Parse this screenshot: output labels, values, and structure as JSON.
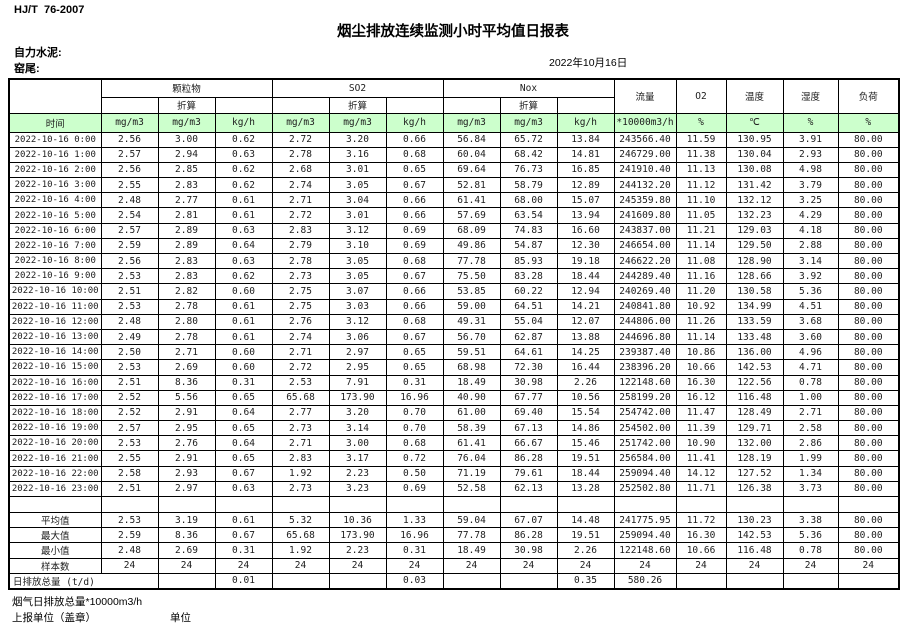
{
  "doc": {
    "standard": "HJ/T  76-2007",
    "title": "烟尘排放连续监测小时平均值日报表",
    "company": "自力水泥:",
    "site": "窑尾:",
    "date": "2022年10月16日"
  },
  "table": {
    "header_fill": "#ccffcc",
    "groups": {
      "pm": "颗粒物",
      "so2": "SO2",
      "nox": "Nox",
      "flow": "流量",
      "o2": "O2",
      "temp": "温度",
      "humidity": "湿度",
      "load": "负荷"
    },
    "converted_label": "折算",
    "units": {
      "time": "时间",
      "mg": "mg/m3",
      "kgh": "kg/h",
      "flow": "*10000m3/h",
      "pct": "%",
      "celsius": "℃"
    },
    "rows": [
      [
        "2022-10-16 0:00",
        "2.56",
        "3.00",
        "0.62",
        "2.72",
        "3.20",
        "0.66",
        "56.84",
        "65.72",
        "13.84",
        "243566.40",
        "11.59",
        "130.95",
        "3.91",
        "80.00"
      ],
      [
        "2022-10-16 1:00",
        "2.57",
        "2.94",
        "0.63",
        "2.78",
        "3.16",
        "0.68",
        "60.04",
        "68.42",
        "14.81",
        "246729.00",
        "11.38",
        "130.04",
        "2.93",
        "80.00"
      ],
      [
        "2022-10-16 2:00",
        "2.56",
        "2.85",
        "0.62",
        "2.68",
        "3.01",
        "0.65",
        "69.64",
        "76.73",
        "16.85",
        "241910.40",
        "11.13",
        "130.08",
        "4.98",
        "80.00"
      ],
      [
        "2022-10-16 3:00",
        "2.55",
        "2.83",
        "0.62",
        "2.74",
        "3.05",
        "0.67",
        "52.81",
        "58.79",
        "12.89",
        "244132.20",
        "11.12",
        "131.42",
        "3.79",
        "80.00"
      ],
      [
        "2022-10-16 4:00",
        "2.48",
        "2.77",
        "0.61",
        "2.71",
        "3.04",
        "0.66",
        "61.41",
        "68.00",
        "15.07",
        "245359.80",
        "11.10",
        "132.12",
        "3.25",
        "80.00"
      ],
      [
        "2022-10-16 5:00",
        "2.54",
        "2.81",
        "0.61",
        "2.72",
        "3.01",
        "0.66",
        "57.69",
        "63.54",
        "13.94",
        "241609.80",
        "11.05",
        "132.23",
        "4.29",
        "80.00"
      ],
      [
        "2022-10-16 6:00",
        "2.57",
        "2.89",
        "0.63",
        "2.83",
        "3.12",
        "0.69",
        "68.09",
        "74.83",
        "16.60",
        "243837.00",
        "11.21",
        "129.03",
        "4.18",
        "80.00"
      ],
      [
        "2022-10-16 7:00",
        "2.59",
        "2.89",
        "0.64",
        "2.79",
        "3.10",
        "0.69",
        "49.86",
        "54.87",
        "12.30",
        "246654.00",
        "11.14",
        "129.50",
        "2.88",
        "80.00"
      ],
      [
        "2022-10-16 8:00",
        "2.56",
        "2.83",
        "0.63",
        "2.78",
        "3.05",
        "0.68",
        "77.78",
        "85.93",
        "19.18",
        "246622.20",
        "11.08",
        "128.90",
        "3.14",
        "80.00"
      ],
      [
        "2022-10-16 9:00",
        "2.53",
        "2.83",
        "0.62",
        "2.73",
        "3.05",
        "0.67",
        "75.50",
        "83.28",
        "18.44",
        "244289.40",
        "11.16",
        "128.66",
        "3.92",
        "80.00"
      ],
      [
        "2022-10-16 10:00",
        "2.51",
        "2.82",
        "0.60",
        "2.75",
        "3.07",
        "0.66",
        "53.85",
        "60.22",
        "12.94",
        "240269.40",
        "11.20",
        "130.58",
        "5.36",
        "80.00"
      ],
      [
        "2022-10-16 11:00",
        "2.53",
        "2.78",
        "0.61",
        "2.75",
        "3.03",
        "0.66",
        "59.00",
        "64.51",
        "14.21",
        "240841.80",
        "10.92",
        "134.99",
        "4.51",
        "80.00"
      ],
      [
        "2022-10-16 12:00",
        "2.48",
        "2.80",
        "0.61",
        "2.76",
        "3.12",
        "0.68",
        "49.31",
        "55.04",
        "12.07",
        "244806.00",
        "11.26",
        "133.59",
        "3.68",
        "80.00"
      ],
      [
        "2022-10-16 13:00",
        "2.49",
        "2.78",
        "0.61",
        "2.74",
        "3.06",
        "0.67",
        "56.70",
        "62.87",
        "13.88",
        "244696.80",
        "11.14",
        "133.48",
        "3.60",
        "80.00"
      ],
      [
        "2022-10-16 14:00",
        "2.50",
        "2.71",
        "0.60",
        "2.71",
        "2.97",
        "0.65",
        "59.51",
        "64.61",
        "14.25",
        "239387.40",
        "10.86",
        "136.00",
        "4.96",
        "80.00"
      ],
      [
        "2022-10-16 15:00",
        "2.53",
        "2.69",
        "0.60",
        "2.72",
        "2.95",
        "0.65",
        "68.98",
        "72.30",
        "16.44",
        "238396.20",
        "10.66",
        "142.53",
        "4.71",
        "80.00"
      ],
      [
        "2022-10-16 16:00",
        "2.51",
        "8.36",
        "0.31",
        "2.53",
        "7.91",
        "0.31",
        "18.49",
        "30.98",
        "2.26",
        "122148.60",
        "16.30",
        "122.56",
        "0.78",
        "80.00"
      ],
      [
        "2022-10-16 17:00",
        "2.52",
        "5.56",
        "0.65",
        "65.68",
        "173.90",
        "16.96",
        "40.90",
        "67.77",
        "10.56",
        "258199.20",
        "16.12",
        "116.48",
        "1.00",
        "80.00"
      ],
      [
        "2022-10-16 18:00",
        "2.52",
        "2.91",
        "0.64",
        "2.77",
        "3.20",
        "0.70",
        "61.00",
        "69.40",
        "15.54",
        "254742.00",
        "11.47",
        "128.49",
        "2.71",
        "80.00"
      ],
      [
        "2022-10-16 19:00",
        "2.57",
        "2.95",
        "0.65",
        "2.73",
        "3.14",
        "0.70",
        "58.39",
        "67.13",
        "14.86",
        "254502.00",
        "11.39",
        "129.71",
        "2.58",
        "80.00"
      ],
      [
        "2022-10-16 20:00",
        "2.53",
        "2.76",
        "0.64",
        "2.71",
        "3.00",
        "0.68",
        "61.41",
        "66.67",
        "15.46",
        "251742.00",
        "10.90",
        "132.00",
        "2.86",
        "80.00"
      ],
      [
        "2022-10-16 21:00",
        "2.55",
        "2.91",
        "0.65",
        "2.83",
        "3.17",
        "0.72",
        "76.04",
        "86.28",
        "19.51",
        "256584.00",
        "11.41",
        "128.19",
        "1.99",
        "80.00"
      ],
      [
        "2022-10-16 22:00",
        "2.58",
        "2.93",
        "0.67",
        "1.92",
        "2.23",
        "0.50",
        "71.19",
        "79.61",
        "18.44",
        "259094.40",
        "14.12",
        "127.52",
        "1.34",
        "80.00"
      ],
      [
        "2022-10-16 23:00",
        "2.51",
        "2.97",
        "0.63",
        "2.73",
        "3.23",
        "0.69",
        "52.58",
        "62.13",
        "13.28",
        "252502.80",
        "11.71",
        "126.38",
        "3.73",
        "80.00"
      ]
    ],
    "summary": [
      {
        "label": "平均值",
        "values": [
          "2.53",
          "3.19",
          "0.61",
          "5.32",
          "10.36",
          "1.33",
          "59.04",
          "67.07",
          "14.48",
          "241775.95",
          "11.72",
          "130.23",
          "3.38",
          "80.00"
        ]
      },
      {
        "label": "最大值",
        "values": [
          "2.59",
          "8.36",
          "0.67",
          "65.68",
          "173.90",
          "16.96",
          "77.78",
          "86.28",
          "19.51",
          "259094.40",
          "16.30",
          "142.53",
          "5.36",
          "80.00"
        ]
      },
      {
        "label": "最小值",
        "values": [
          "2.48",
          "2.69",
          "0.31",
          "1.92",
          "2.23",
          "0.31",
          "18.49",
          "30.98",
          "2.26",
          "122148.60",
          "10.66",
          "116.48",
          "0.78",
          "80.00"
        ]
      },
      {
        "label": "样本数",
        "values": [
          "24",
          "24",
          "24",
          "24",
          "24",
          "24",
          "24",
          "24",
          "24",
          "24",
          "24",
          "24",
          "24",
          "24"
        ]
      }
    ],
    "daily_total": {
      "label": "日排放总量 (t/d)",
      "values": [
        "",
        "0.01",
        "",
        "",
        "0.03",
        "",
        "",
        "0.35",
        "580.26",
        "",
        "",
        "",
        ""
      ]
    }
  },
  "footer": {
    "flue_total": "烟气日排放总量*10000m3/h",
    "report_unit": "上报单位（盖章）",
    "unit": "单位"
  }
}
